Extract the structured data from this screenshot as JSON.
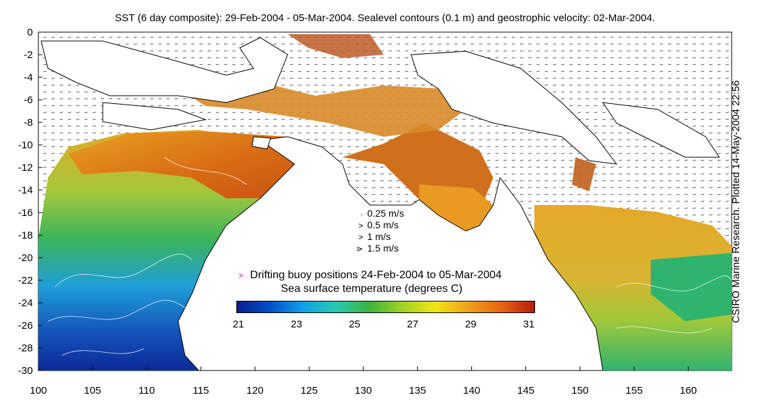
{
  "title": "SST (6 day composite): 29-Feb-2004 - 05-Mar-2004. Sealevel contours (0.1 m) and geostrophic velocity: 02-Mar-2004.",
  "credit": "CSIRO Marine Research. Plotted 14-May-2004 22:56",
  "x_ticks": [
    "100",
    "105",
    "110",
    "115",
    "120",
    "125",
    "130",
    "135",
    "140",
    "145",
    "150",
    "155",
    "160"
  ],
  "y_ticks": [
    "0",
    "-2",
    "-4",
    "-6",
    "-8",
    "-10",
    "-12",
    "-14",
    "-16",
    "-18",
    "-20",
    "-22",
    "-24",
    "-26",
    "-28",
    "-30"
  ],
  "velocity_legend": [
    {
      "glyph": "·",
      "label": "0.25 m/s"
    },
    {
      "glyph": "˃",
      "label": "0.5 m/s"
    },
    {
      "glyph": ">",
      "label": "1 m/s"
    },
    {
      "glyph": "⋗",
      "label": "1.5 m/s"
    }
  ],
  "buoy": {
    "marker": ">",
    "label": "Drifting buoy positions 24-Feb-2004 to 05-Mar-2004",
    "color": "#e000e0"
  },
  "colorbar": {
    "title": "Sea surface temperature (degrees C)",
    "ticks": [
      "21",
      "23",
      "25",
      "27",
      "29",
      "31"
    ],
    "stops": [
      "#0a1e8c",
      "#0050c8",
      "#14a0e6",
      "#28c8b4",
      "#3cb43c",
      "#a0d228",
      "#f0e614",
      "#f0a01e",
      "#e66414",
      "#b41e0a"
    ]
  },
  "map_extent": {
    "lon": [
      100,
      164
    ],
    "lat": [
      -30,
      0
    ]
  }
}
